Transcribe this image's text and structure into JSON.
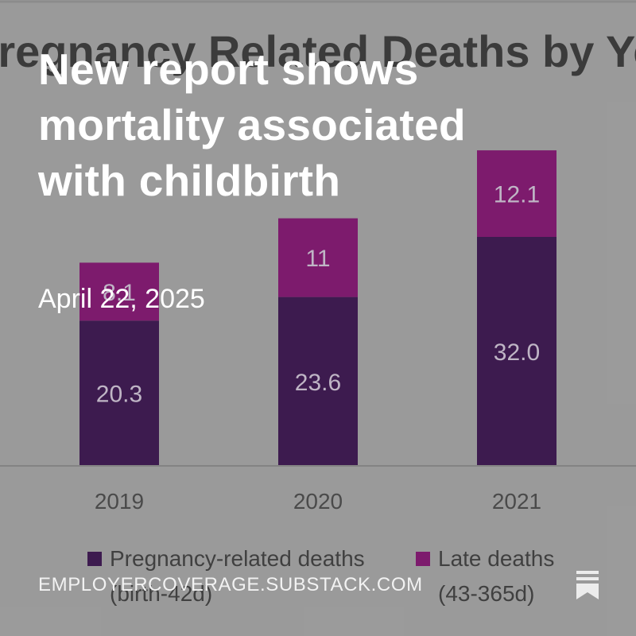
{
  "post": {
    "title": "New report shows mortality associated with childbirth",
    "date": "April 22, 2025",
    "site": "EMPLOYERCOVERAGE.SUBSTACK.COM",
    "bookmark_icon": "bookmark-icon"
  },
  "colors": {
    "background": "#9c9c9c",
    "pregnancy_related": "#2a0040",
    "late": "#780064",
    "headline_text": "#ffffff"
  },
  "chart_data": {
    "type": "bar",
    "stacked": true,
    "title": "Pregnancy Related Deaths by Year",
    "categories": [
      "2019",
      "2020",
      "2021"
    ],
    "series": [
      {
        "name": "Pregnancy-related deaths",
        "name_line2": "(birth-42d)",
        "values": [
          20.3,
          23.6,
          32.0
        ],
        "labels": [
          "20.3",
          "23.6",
          "32.0"
        ],
        "color": "#2a0040"
      },
      {
        "name": "Late deaths",
        "name_line2": "(43-365d)",
        "values": [
          8.1,
          11,
          12.1
        ],
        "labels": [
          "8.1",
          "11",
          "12.1"
        ],
        "color": "#780064"
      }
    ],
    "legend": "bottom",
    "grid": false,
    "ylim": [
      0,
      50
    ]
  }
}
